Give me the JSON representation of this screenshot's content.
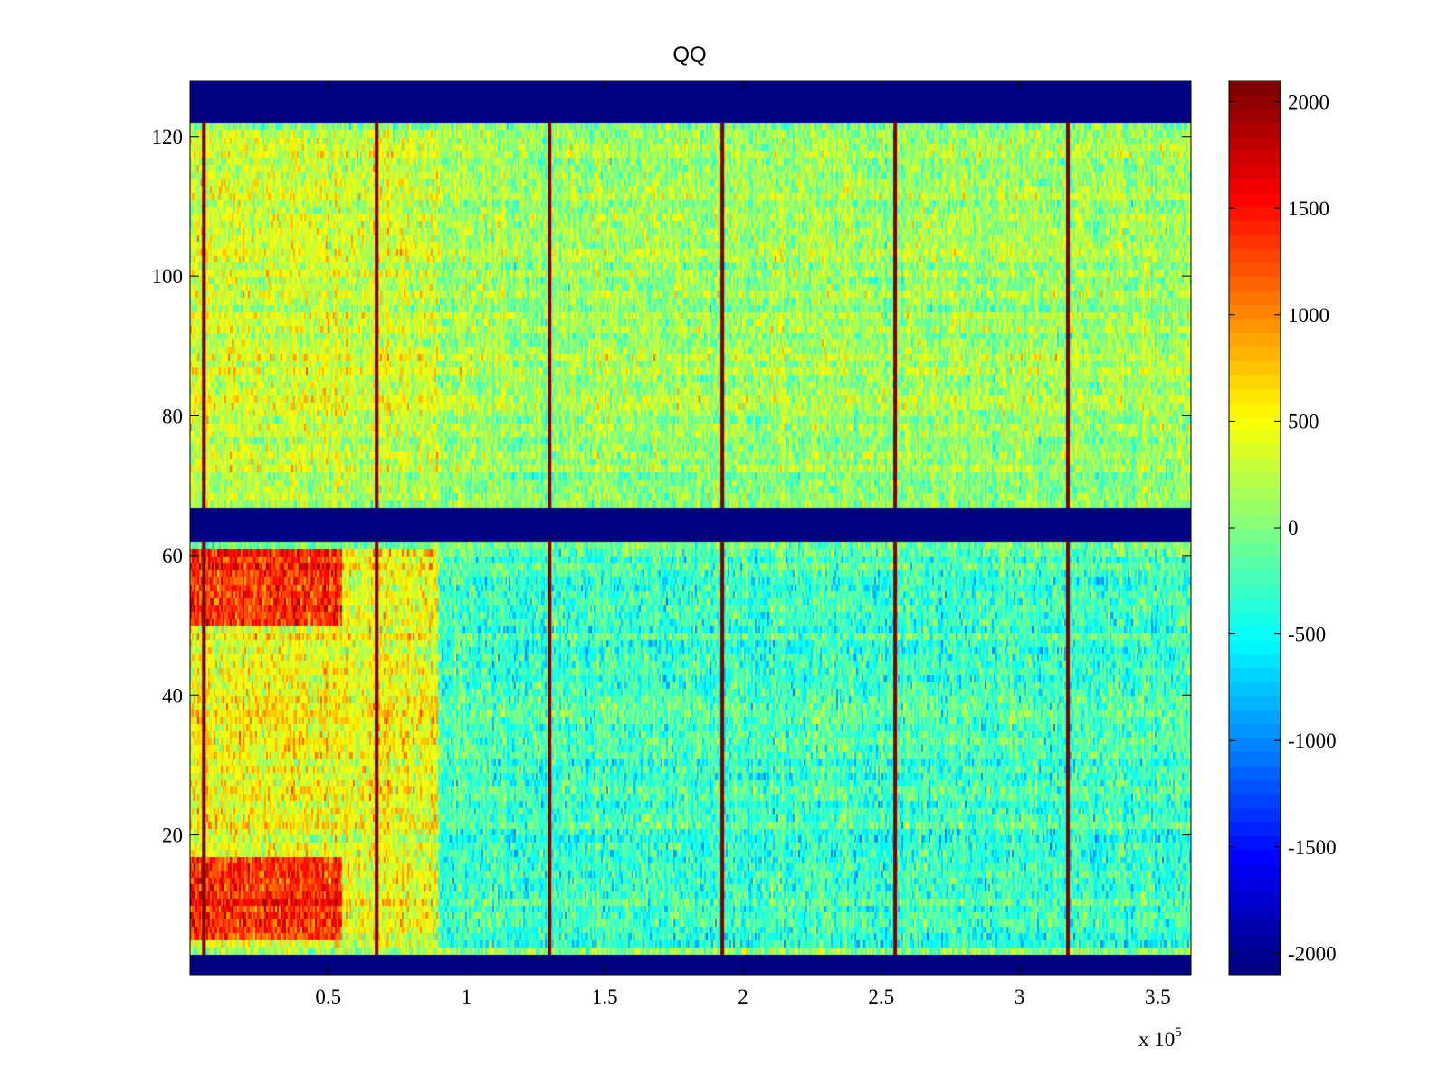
{
  "chart_data": {
    "type": "heatmap",
    "title": "QQ",
    "xlabel": "",
    "ylabel": "",
    "xlim": [
      0,
      362000
    ],
    "ylim": [
      0,
      128
    ],
    "x_multiplier_label": "x 10",
    "x_multiplier_exponent": "5",
    "x_ticks": [
      {
        "value": 50000,
        "label": "0.5"
      },
      {
        "value": 100000,
        "label": "1"
      },
      {
        "value": 150000,
        "label": "1.5"
      },
      {
        "value": 200000,
        "label": "2"
      },
      {
        "value": 250000,
        "label": "2.5"
      },
      {
        "value": 300000,
        "label": "3"
      },
      {
        "value": 350000,
        "label": "3.5"
      }
    ],
    "y_ticks": [
      {
        "value": 20,
        "label": "20"
      },
      {
        "value": 40,
        "label": "40"
      },
      {
        "value": 60,
        "label": "60"
      },
      {
        "value": 80,
        "label": "80"
      },
      {
        "value": 100,
        "label": "100"
      },
      {
        "value": 120,
        "label": "120"
      }
    ],
    "colormap": "jet",
    "clim": [
      -2100,
      2100
    ],
    "colorbar_ticks": [
      {
        "value": 2000,
        "label": "2000"
      },
      {
        "value": 1500,
        "label": "1500"
      },
      {
        "value": 1000,
        "label": "1000"
      },
      {
        "value": 500,
        "label": "500"
      },
      {
        "value": 0,
        "label": "0"
      },
      {
        "value": -500,
        "label": "-500"
      },
      {
        "value": -1000,
        "label": "-1000"
      },
      {
        "value": -1500,
        "label": "-1500"
      },
      {
        "value": -2000,
        "label": "-2000"
      }
    ],
    "masked_row_bands": [
      {
        "rows": [
          0,
          3
        ],
        "value": -2100
      },
      {
        "rows": [
          62,
          67
        ],
        "value": -2100
      },
      {
        "rows": [
          122,
          128
        ],
        "value": -2100
      }
    ],
    "vertical_stripes": [
      {
        "x": 5000,
        "value": 2100
      },
      {
        "x": 67500,
        "value": 2100
      },
      {
        "x": 130000,
        "value": 2100
      },
      {
        "x": 192500,
        "value": 2100
      },
      {
        "x": 255000,
        "value": 2100
      },
      {
        "x": 317500,
        "value": 2100
      }
    ],
    "regions": [
      {
        "name": "upper",
        "rows": [
          68,
          121
        ],
        "mean": 150,
        "noise": 350
      },
      {
        "name": "lower",
        "rows": [
          4,
          61
        ],
        "mean": 50,
        "noise": 380
      },
      {
        "name": "lower-hot-band-top",
        "rows": [
          50,
          61
        ],
        "x": [
          0,
          55000
        ],
        "mean": 1400
      },
      {
        "name": "lower-hot-band-bottom",
        "rows": [
          5,
          17
        ],
        "x": [
          0,
          55000
        ],
        "mean": 1400
      },
      {
        "name": "lower-warm-left",
        "rows": [
          4,
          61
        ],
        "x": [
          0,
          90000
        ],
        "mean": 500
      },
      {
        "name": "lower-cool-right",
        "rows": [
          4,
          61
        ],
        "x": [
          90000,
          362000
        ],
        "mean": -250
      }
    ],
    "grid": false,
    "legend": "none"
  },
  "colors": {
    "axes": "#000000",
    "background": "#ffffff"
  }
}
